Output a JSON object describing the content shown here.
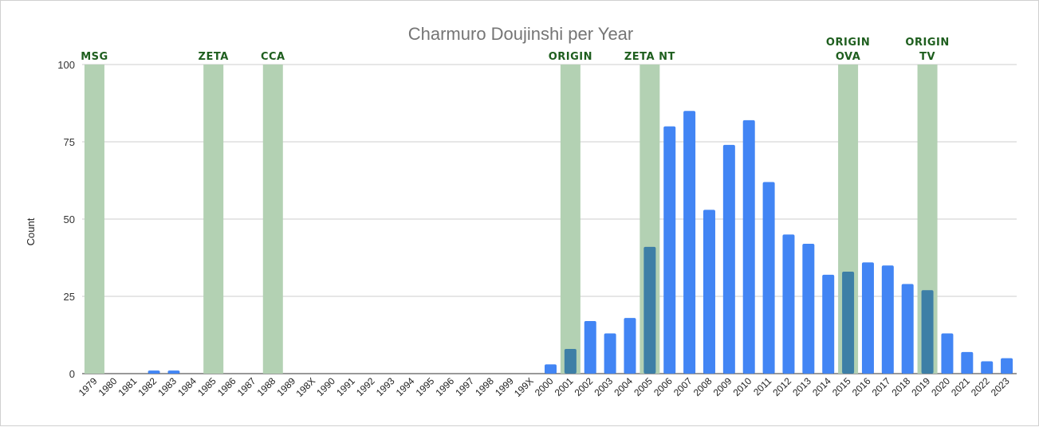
{
  "chart_data": {
    "type": "bar",
    "title": "Charmuro Doujinshi per Year",
    "ylabel": "Count",
    "xlabel": "",
    "ylim": [
      0,
      100
    ],
    "yticks": [
      0,
      25,
      50,
      75,
      100
    ],
    "grid": true,
    "legend": "none",
    "colors": {
      "bar": "#4285f4",
      "highlight_band": "#b3d1b3",
      "overlap_bar": "#3d7fa6",
      "annotation_text": "#1e5e1e",
      "title": "#757575"
    },
    "categories": [
      "1979",
      "1980",
      "1981",
      "1982",
      "1983",
      "1984",
      "1985",
      "1986",
      "1987",
      "1988",
      "1989",
      "198X",
      "1990",
      "1991",
      "1992",
      "1993",
      "1994",
      "1995",
      "1996",
      "1997",
      "1998",
      "1999",
      "199X",
      "2000",
      "2001",
      "2002",
      "2003",
      "2004",
      "2005",
      "2006",
      "2007",
      "2008",
      "2009",
      "2010",
      "2011",
      "2012",
      "2013",
      "2014",
      "2015",
      "2016",
      "2017",
      "2018",
      "2019",
      "2020",
      "2021",
      "2022",
      "2023"
    ],
    "values": [
      0,
      0,
      0,
      1,
      1,
      0,
      0,
      0,
      0,
      0,
      0,
      0,
      0,
      0,
      0,
      0,
      0,
      0,
      0,
      0,
      0,
      0,
      0,
      3,
      8,
      17,
      13,
      18,
      41,
      80,
      85,
      53,
      74,
      82,
      62,
      45,
      42,
      32,
      33,
      36,
      35,
      29,
      27,
      13,
      7,
      4,
      5
    ],
    "highlights": [
      {
        "category": "1979",
        "labels": [
          "MSG"
        ]
      },
      {
        "category": "1985",
        "labels": [
          "ZETA"
        ]
      },
      {
        "category": "1988",
        "labels": [
          "CCA"
        ]
      },
      {
        "category": "2001",
        "labels": [
          "ORIGIN"
        ]
      },
      {
        "category": "2005",
        "labels": [
          "ZETA NT"
        ]
      },
      {
        "category": "2015",
        "labels": [
          "ORIGIN",
          "OVA"
        ]
      },
      {
        "category": "2019",
        "labels": [
          "ORIGIN",
          "TV"
        ]
      }
    ]
  }
}
